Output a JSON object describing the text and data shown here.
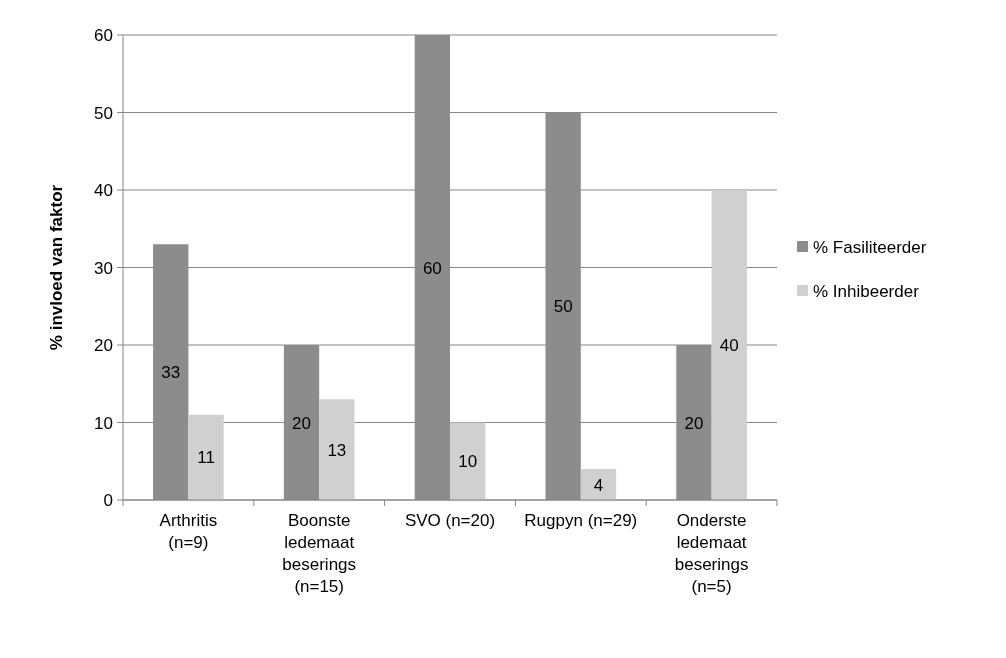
{
  "chart_data": {
    "type": "bar",
    "ylabel": "% invloed van faktor",
    "categories": [
      "Arthritis (n=9)",
      "Boonste ledemaat beserings (n=15)",
      "SVO (n=20)",
      "Rugpyn (n=29)",
      "Onderste ledemaat beserings (n=5)"
    ],
    "series": [
      {
        "name": "% Fasiliteerder",
        "color": "#8c8c8c",
        "values": [
          33,
          20,
          60,
          50,
          20
        ]
      },
      {
        "name": "% Inhibeerder",
        "color": "#d0d0d0",
        "values": [
          11,
          13,
          10,
          4,
          40
        ]
      }
    ],
    "ylim": [
      0,
      60
    ],
    "yticks": [
      0,
      10,
      20,
      30,
      40,
      50,
      60
    ],
    "grid": "y",
    "legend": "right",
    "data_labels": true
  }
}
